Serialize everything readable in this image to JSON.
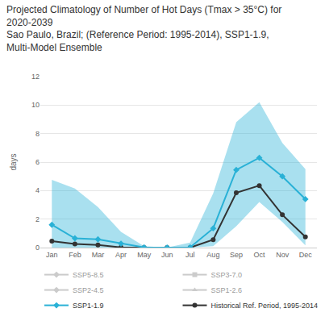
{
  "chart_data": {
    "type": "line",
    "title": "Projected Climatology of Number of Hot Days (Tmax > 35°C) for\n2020-2039\nSao Paulo, Brazil; (Reference Period: 1995-2014), SSP1-1.9,\nMulti-Model Ensemble",
    "y_label": "days",
    "categories": [
      "Jan",
      "Feb",
      "Mar",
      "Apr",
      "May",
      "Jun",
      "Jul",
      "Aug",
      "Sep",
      "Oct",
      "Nov",
      "Dec"
    ],
    "series": [
      {
        "name": "Historical Ref. Period, 1995-2014",
        "color": "#333333",
        "marker": "circle",
        "line_style": "solid",
        "values": [
          0.45,
          0.25,
          0.18,
          0.02,
          0,
          0,
          0,
          0.55,
          3.85,
          4.35,
          2.3,
          0.75
        ]
      },
      {
        "name": "SSP1-1.9",
        "color": "#29b1d6",
        "marker": "diamond",
        "line_style": "solid",
        "values": [
          1.6,
          0.65,
          0.58,
          0.28,
          0.02,
          0,
          0.02,
          1.35,
          5.45,
          6.3,
          5.0,
          3.4
        ],
        "lower": [
          0,
          0,
          0,
          0,
          0,
          0,
          0,
          0.1,
          1.5,
          3.2,
          1.8,
          0.15
        ],
        "upper": [
          4.75,
          4.15,
          2.85,
          1.1,
          0.1,
          0,
          0.35,
          3.8,
          8.8,
          10.2,
          7.35,
          5.5
        ]
      },
      {
        "name": "SSP1-2.6",
        "color": "#999999",
        "marker": "triangle-up",
        "line_style": "solid",
        "values": [
          null,
          null,
          null,
          null,
          null,
          null,
          null,
          null,
          null,
          null,
          null,
          null
        ]
      },
      {
        "name": "SSP2-4.5",
        "color": "#999999",
        "marker": "diamond",
        "line_style": "solid",
        "values": [
          null,
          null,
          null,
          null,
          null,
          null,
          null,
          null,
          null,
          null,
          null,
          null
        ]
      },
      {
        "name": "SSP3-7.0",
        "color": "#999999",
        "marker": "square",
        "line_style": "solid",
        "values": [
          null,
          null,
          null,
          null,
          null,
          null,
          null,
          null,
          null,
          null,
          null,
          null
        ]
      },
      {
        "name": "SSP5-8.5",
        "color": "#999999",
        "marker": "diamond",
        "line_style": "solid",
        "values": [
          null,
          null,
          null,
          null,
          null,
          null,
          null,
          null,
          null,
          null,
          null,
          null
        ]
      }
    ],
    "ylim": [
      0,
      12
    ],
    "yticks": [
      0,
      2,
      4,
      6,
      8,
      10,
      12
    ],
    "grid": true,
    "legend": "bottom"
  }
}
